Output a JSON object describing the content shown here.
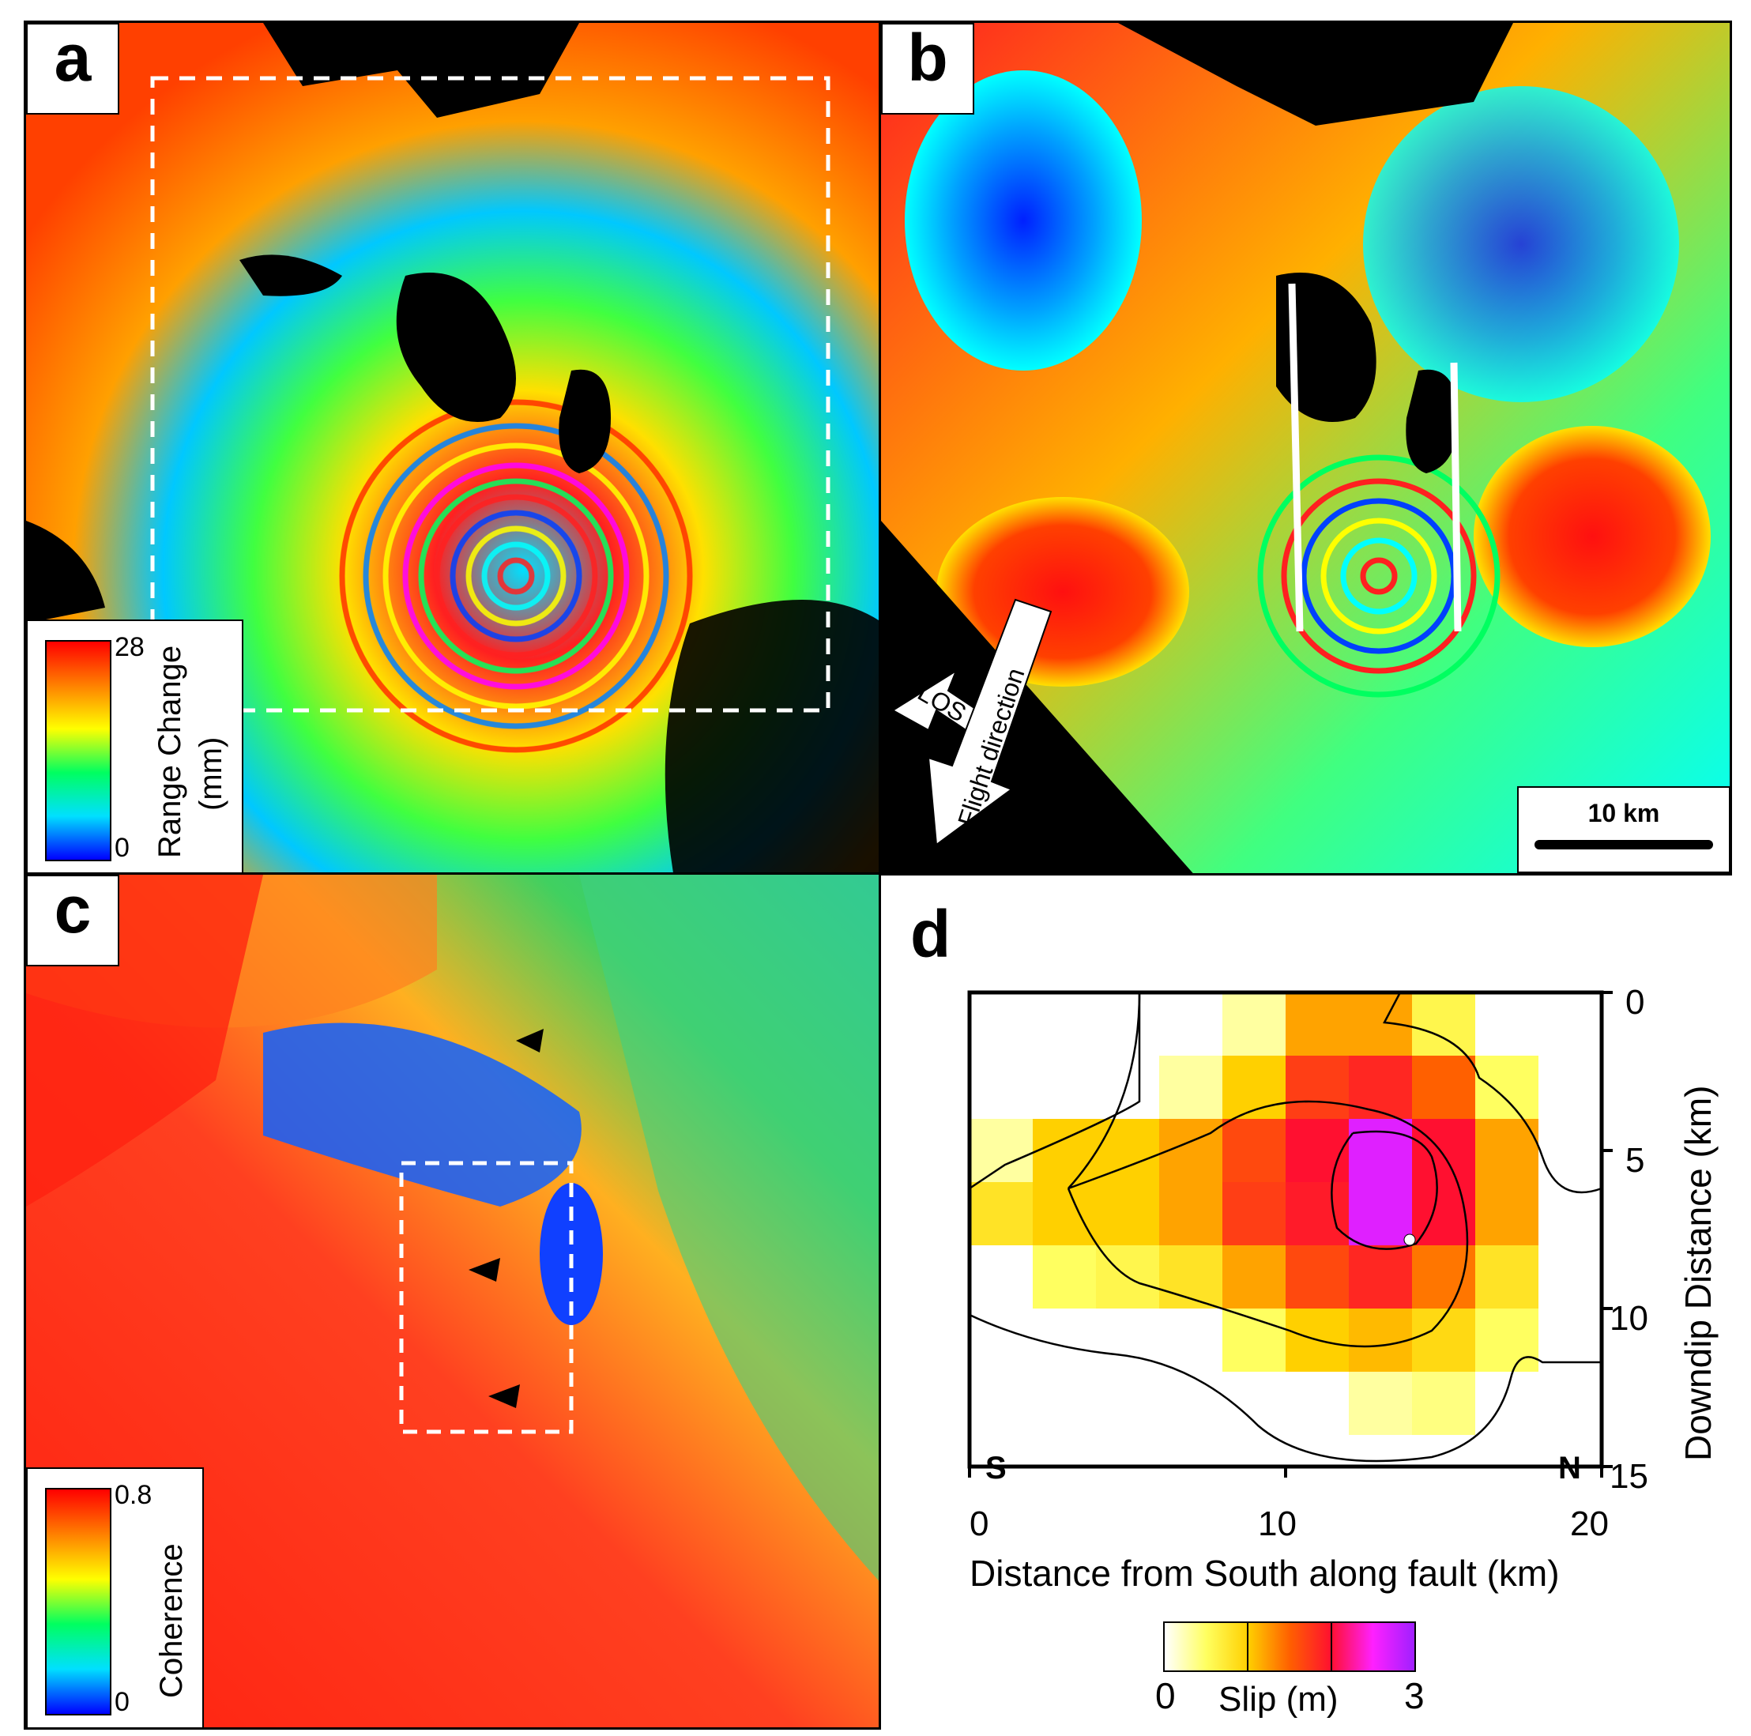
{
  "panels": {
    "a": {
      "letter": "a",
      "colorbar": {
        "label_line1": "Range Change",
        "label_line2": "(mm)",
        "max": "28",
        "min": "0"
      }
    },
    "b": {
      "letter": "b",
      "los_label": "LOS",
      "flight_label": "Flight direction",
      "scale_label": "10 km"
    },
    "c": {
      "letter": "c",
      "colorbar": {
        "label": "Coherence",
        "max": "0.8",
        "min": "0"
      }
    },
    "d": {
      "letter": "d",
      "south_label": "S",
      "north_label": "N",
      "xlabel": "Distance from South along fault (km)",
      "ylabel": "Downdip Distance (km)",
      "xticks": [
        "0",
        "10",
        "20"
      ],
      "yticks": [
        "0",
        "5",
        "10",
        "15"
      ],
      "colorbar": {
        "label": "Slip (m)",
        "min": "0",
        "max": "3"
      }
    }
  },
  "chart_data": {
    "type": "heatmap",
    "xlabel": "Distance from South along fault (km)",
    "ylabel": "Downdip Distance (km)",
    "xlim": [
      0,
      20
    ],
    "ylim": [
      0,
      15
    ],
    "colorbar_label": "Slip (m)",
    "colorbar_range": [
      0,
      3
    ],
    "cell_size_km": [
      2,
      2
    ],
    "slip_grid_m": [
      [
        0,
        0,
        0,
        0,
        0.3,
        1.2,
        1.2,
        0.6,
        0,
        0
      ],
      [
        0,
        0,
        0,
        0.3,
        1.0,
        1.8,
        2.0,
        1.5,
        0.5,
        0
      ],
      [
        0.3,
        1.0,
        1.0,
        1.2,
        1.7,
        2.2,
        2.8,
        2.2,
        1.2,
        0
      ],
      [
        0.8,
        1.0,
        1.0,
        1.2,
        1.8,
        2.1,
        2.8,
        2.2,
        1.2,
        0
      ],
      [
        0,
        0.5,
        0.6,
        0.8,
        1.2,
        1.7,
        2.0,
        1.4,
        0.8,
        0
      ],
      [
        0,
        0,
        0,
        0,
        0.5,
        1.0,
        1.1,
        0.9,
        0.5,
        0
      ],
      [
        0,
        0,
        0,
        0,
        0,
        0,
        0.3,
        0.4,
        0,
        0
      ],
      [
        0,
        0,
        0,
        0,
        0,
        0,
        0,
        0,
        0,
        0
      ]
    ]
  }
}
